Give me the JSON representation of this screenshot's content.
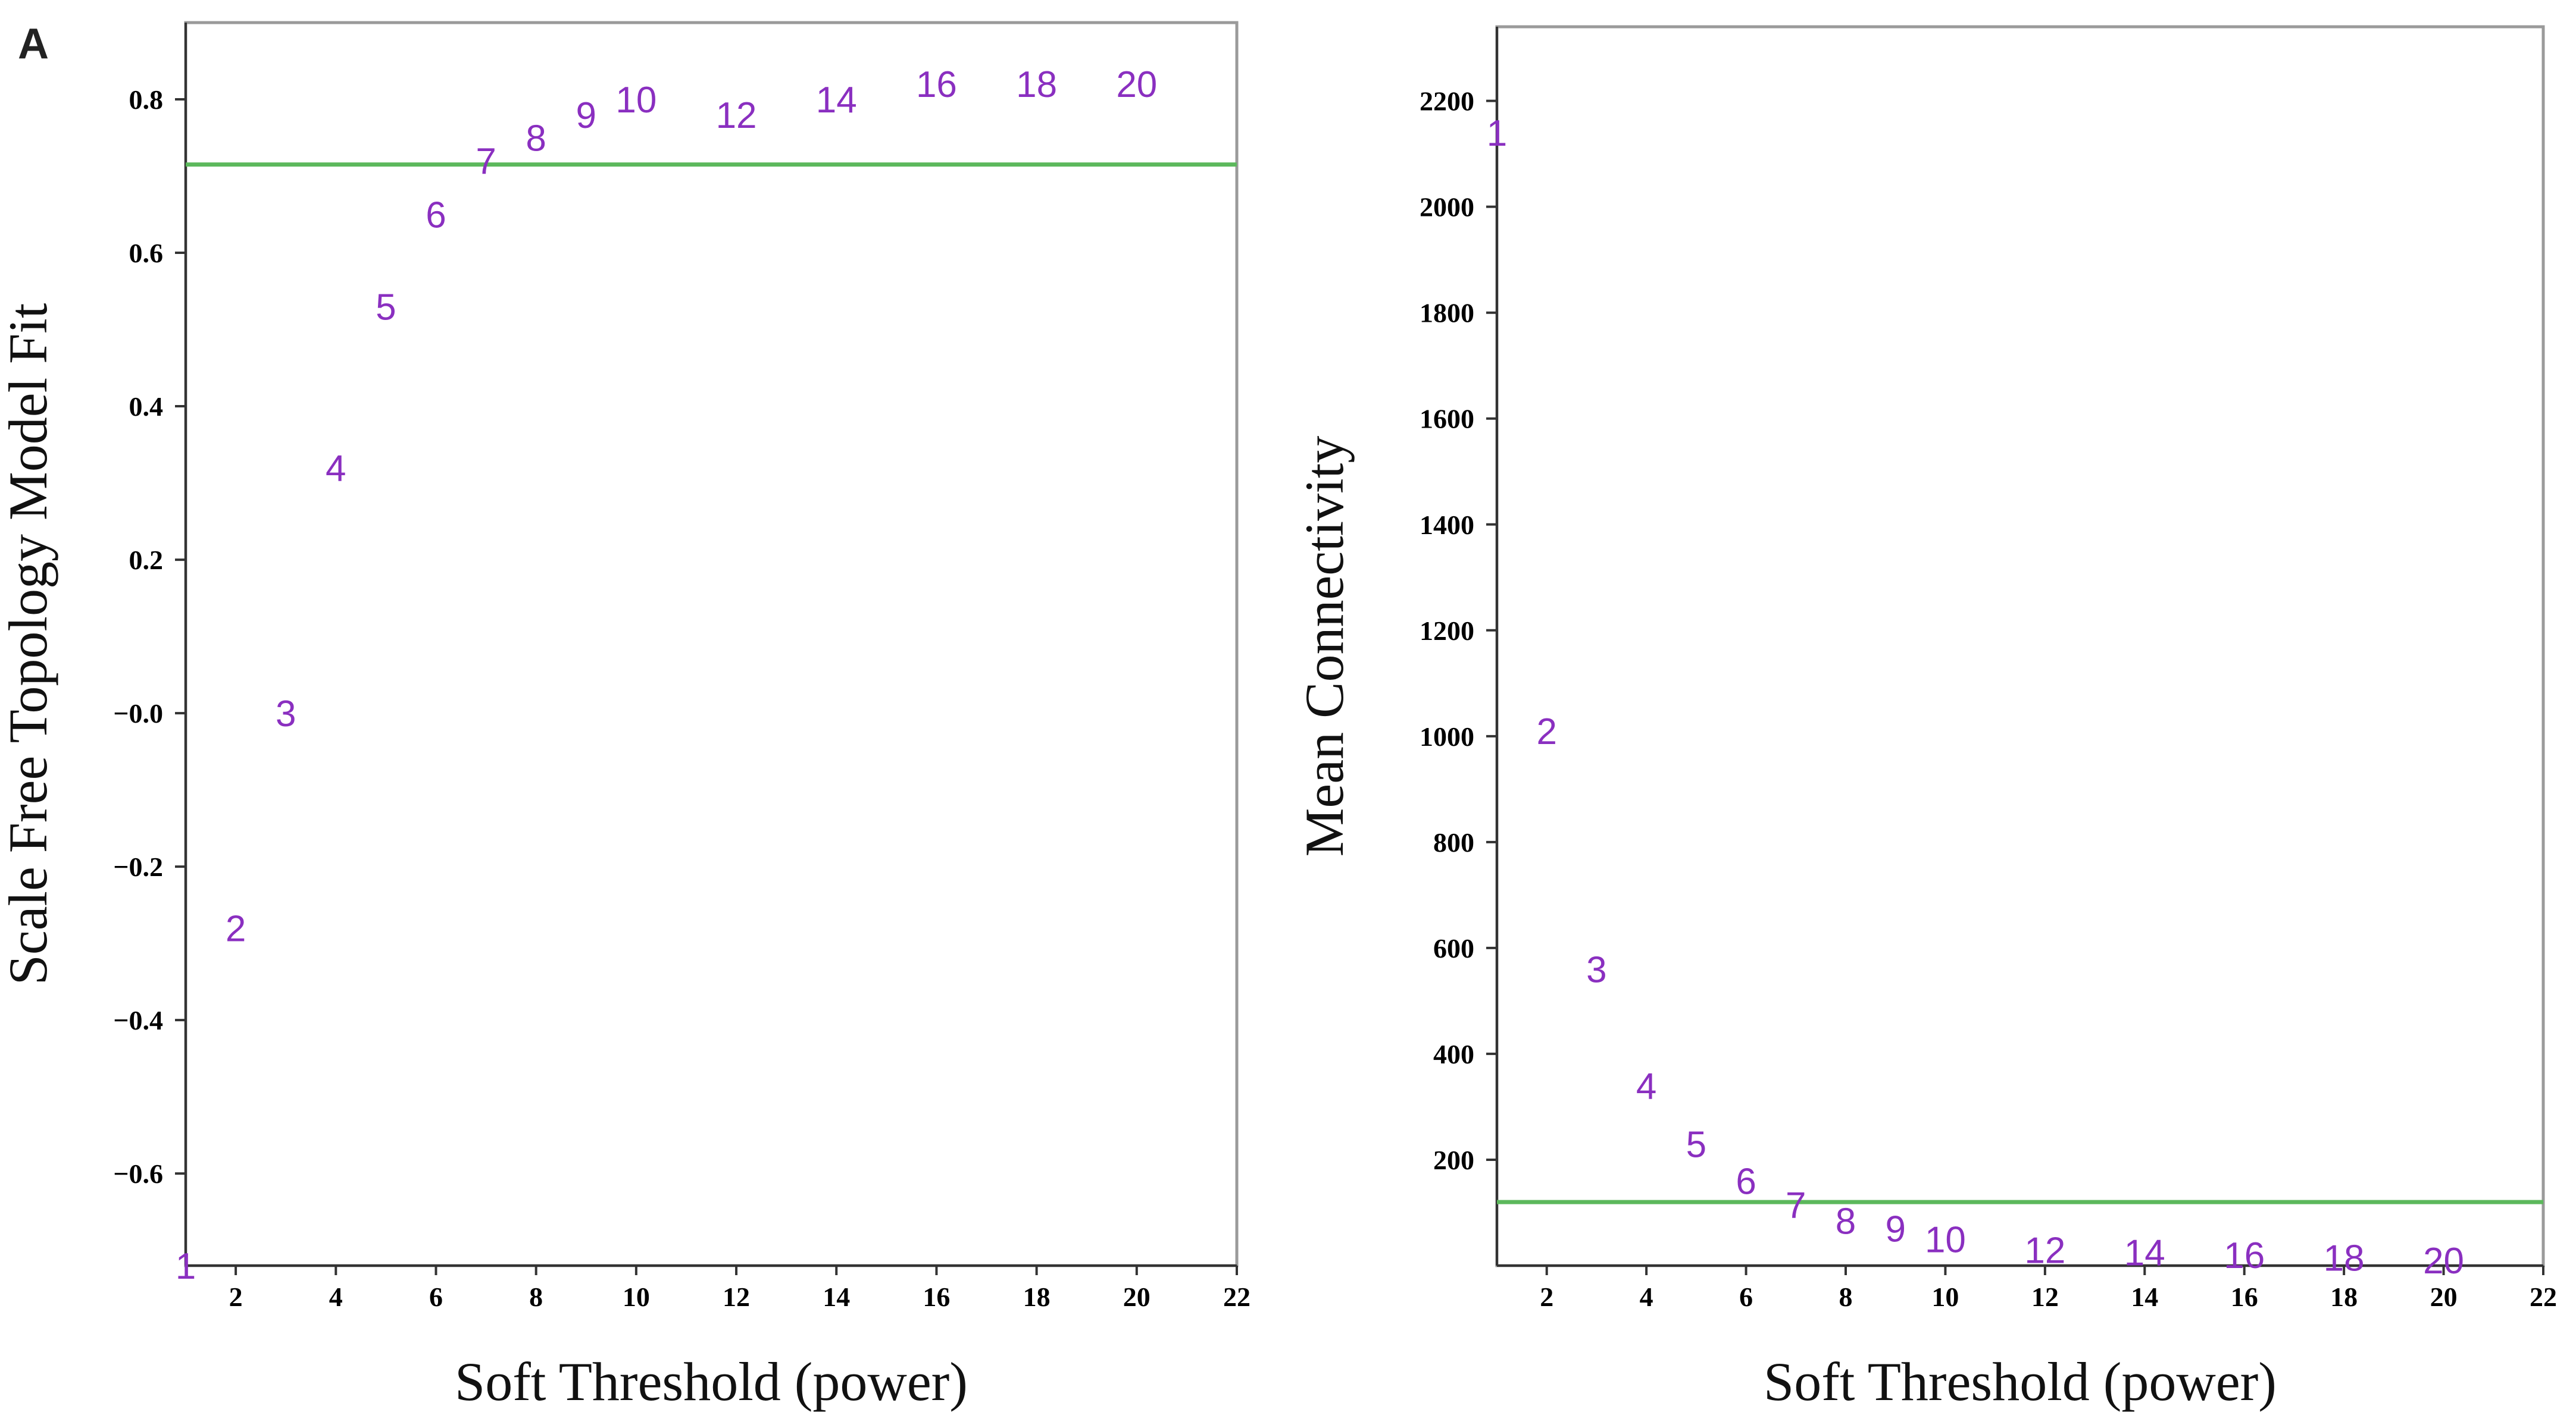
{
  "panel_letter": "A",
  "chart_data": [
    {
      "type": "scatter",
      "title": "",
      "xlabel": "Soft Threshold (power)",
      "ylabel": "Scale Free Topology Model Fit",
      "xlim": [
        1,
        22
      ],
      "ylim": [
        -0.72,
        0.9
      ],
      "xticks": [
        2,
        4,
        6,
        8,
        10,
        12,
        14,
        16,
        18,
        20,
        22
      ],
      "xtick_labels": [
        "2",
        "4",
        "6",
        "8",
        "10",
        "12",
        "14",
        "16",
        "18",
        "20",
        "22"
      ],
      "yticks": [
        0.8,
        0.6,
        0.4,
        0.2,
        0.0,
        -0.2,
        -0.4,
        -0.6
      ],
      "ytick_labels": [
        "0.8",
        "0.6",
        "0.4",
        "0.2",
        "−0.0",
        "−0.2",
        "−0.4",
        "−0.6"
      ],
      "points": [
        {
          "x": 1,
          "y": -0.72,
          "label": "1"
        },
        {
          "x": 2,
          "y": -0.28,
          "label": "2"
        },
        {
          "x": 3,
          "y": 0.0,
          "label": "3"
        },
        {
          "x": 4,
          "y": 0.32,
          "label": "4"
        },
        {
          "x": 5,
          "y": 0.53,
          "label": "5"
        },
        {
          "x": 6,
          "y": 0.65,
          "label": "6"
        },
        {
          "x": 7,
          "y": 0.72,
          "label": "7"
        },
        {
          "x": 8,
          "y": 0.75,
          "label": "8"
        },
        {
          "x": 9,
          "y": 0.78,
          "label": "9"
        },
        {
          "x": 10,
          "y": 0.8,
          "label": "10"
        },
        {
          "x": 12,
          "y": 0.78,
          "label": "12"
        },
        {
          "x": 14,
          "y": 0.8,
          "label": "14"
        },
        {
          "x": 16,
          "y": 0.82,
          "label": "16"
        },
        {
          "x": 18,
          "y": 0.82,
          "label": "18"
        },
        {
          "x": 20,
          "y": 0.82,
          "label": "20"
        }
      ],
      "hline": 0.715,
      "hline_color": "#5cb85c",
      "label_color": "#8a2fc0"
    },
    {
      "type": "scatter",
      "title": "",
      "xlabel": "Soft Threshold (power)",
      "ylabel": "Mean Connectivity",
      "xlim": [
        1,
        22
      ],
      "ylim": [
        0,
        2340
      ],
      "xticks": [
        2,
        4,
        6,
        8,
        10,
        12,
        14,
        16,
        18,
        20,
        22
      ],
      "xtick_labels": [
        "2",
        "4",
        "6",
        "8",
        "10",
        "12",
        "14",
        "16",
        "18",
        "20",
        "22"
      ],
      "yticks": [
        200,
        400,
        600,
        800,
        1000,
        1200,
        1400,
        1600,
        1800,
        2000,
        2200
      ],
      "ytick_labels": [
        "200",
        "400",
        "600",
        "800",
        "1000",
        "1200",
        "1400",
        "1600",
        "1800",
        "2000",
        "2200"
      ],
      "points": [
        {
          "x": 1,
          "y": 2140,
          "label": "1"
        },
        {
          "x": 2,
          "y": 1010,
          "label": "2"
        },
        {
          "x": 3,
          "y": 560,
          "label": "3"
        },
        {
          "x": 4,
          "y": 340,
          "label": "4"
        },
        {
          "x": 5,
          "y": 230,
          "label": "5"
        },
        {
          "x": 6,
          "y": 160,
          "label": "6"
        },
        {
          "x": 7,
          "y": 115,
          "label": "7"
        },
        {
          "x": 8,
          "y": 85,
          "label": "8"
        },
        {
          "x": 9,
          "y": 70,
          "label": "9"
        },
        {
          "x": 10,
          "y": 50,
          "label": "10"
        },
        {
          "x": 12,
          "y": 30,
          "label": "12"
        },
        {
          "x": 14,
          "y": 25,
          "label": "14"
        },
        {
          "x": 16,
          "y": 20,
          "label": "16"
        },
        {
          "x": 18,
          "y": 15,
          "label": "18"
        },
        {
          "x": 20,
          "y": 10,
          "label": "20"
        }
      ],
      "hline": 120,
      "hline_color": "#5cb85c",
      "label_color": "#8a2fc0"
    }
  ]
}
